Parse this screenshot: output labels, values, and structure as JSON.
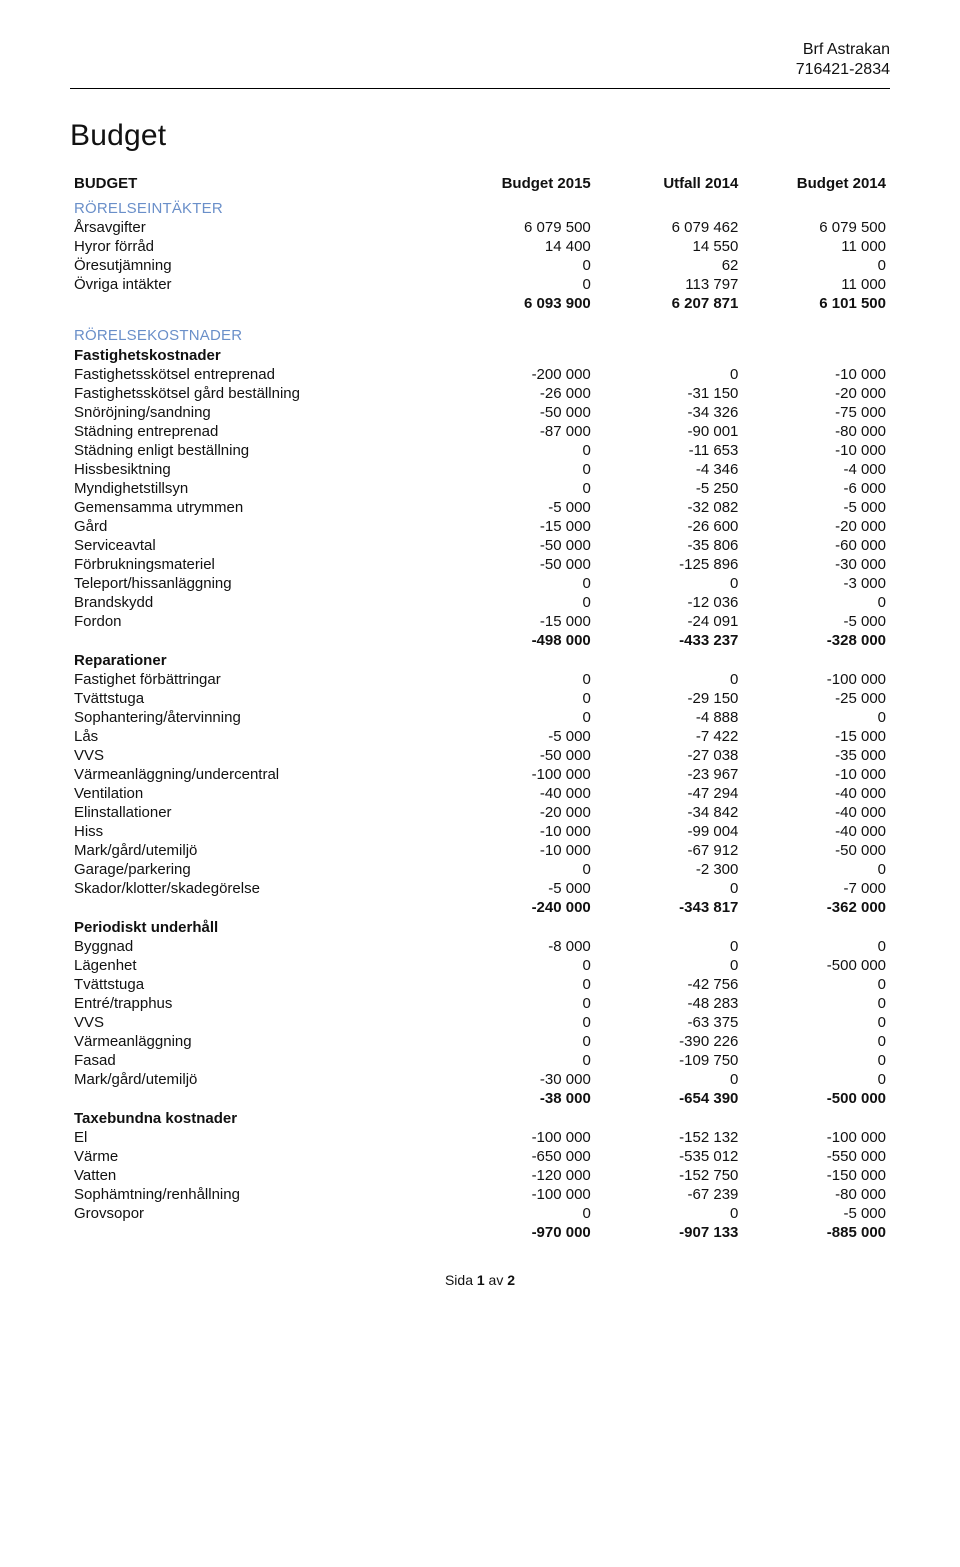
{
  "header": {
    "org_name": "Brf Astrakan",
    "org_number": "716421-2834"
  },
  "title": "Budget",
  "columns": {
    "label": "BUDGET",
    "c1": "Budget 2015",
    "c2": "Utfall 2014",
    "c3": "Budget 2014"
  },
  "sections": [
    {
      "title": "RÖRELSEINTÄKTER",
      "rows": [
        {
          "label": "Årsavgifter",
          "c1": "6 079 500",
          "c2": "6 079 462",
          "c3": "6 079 500"
        },
        {
          "label": "Hyror förråd",
          "c1": "14 400",
          "c2": "14 550",
          "c3": "11 000"
        },
        {
          "label": "Öresutjämning",
          "c1": "0",
          "c2": "62",
          "c3": "0"
        },
        {
          "label": "Övriga intäkter",
          "c1": "0",
          "c2": "113 797",
          "c3": "11 000"
        }
      ],
      "sum": {
        "label": "",
        "c1": "6 093 900",
        "c2": "6 207 871",
        "c3": "6 101 500"
      }
    },
    {
      "title": "RÖRELSEKOSTNADER",
      "subsections": [
        {
          "title": "Fastighetskostnader",
          "rows": [
            {
              "label": "Fastighetsskötsel entreprenad",
              "c1": "-200 000",
              "c2": "0",
              "c3": "-10 000"
            },
            {
              "label": "Fastighetsskötsel gård beställning",
              "c1": "-26 000",
              "c2": "-31 150",
              "c3": "-20 000"
            },
            {
              "label": "Snöröjning/sandning",
              "c1": "-50 000",
              "c2": "-34 326",
              "c3": "-75 000"
            },
            {
              "label": "Städning entreprenad",
              "c1": "-87 000",
              "c2": "-90 001",
              "c3": "-80 000"
            },
            {
              "label": "Städning enligt beställning",
              "c1": "0",
              "c2": "-11 653",
              "c3": "-10 000"
            },
            {
              "label": "Hissbesiktning",
              "c1": "0",
              "c2": "-4 346",
              "c3": "-4 000"
            },
            {
              "label": "Myndighetstillsyn",
              "c1": "0",
              "c2": "-5 250",
              "c3": "-6 000"
            },
            {
              "label": "Gemensamma utrymmen",
              "c1": "-5 000",
              "c2": "-32 082",
              "c3": "-5 000"
            },
            {
              "label": "Gård",
              "c1": "-15 000",
              "c2": "-26 600",
              "c3": "-20 000"
            },
            {
              "label": "Serviceavtal",
              "c1": "-50 000",
              "c2": "-35 806",
              "c3": "-60 000"
            },
            {
              "label": "Förbrukningsmateriel",
              "c1": "-50 000",
              "c2": "-125 896",
              "c3": "-30 000"
            },
            {
              "label": "Teleport/hissanläggning",
              "c1": "0",
              "c2": "0",
              "c3": "-3 000"
            },
            {
              "label": "Brandskydd",
              "c1": "0",
              "c2": "-12 036",
              "c3": "0"
            },
            {
              "label": "Fordon",
              "c1": "-15 000",
              "c2": "-24 091",
              "c3": "-5 000"
            }
          ],
          "sum": {
            "label": "",
            "c1": "-498 000",
            "c2": "-433 237",
            "c3": "-328 000"
          }
        },
        {
          "title": "Reparationer",
          "rows": [
            {
              "label": "Fastighet förbättringar",
              "c1": "0",
              "c2": "0",
              "c3": "-100 000"
            },
            {
              "label": "Tvättstuga",
              "c1": "0",
              "c2": "-29 150",
              "c3": "-25 000"
            },
            {
              "label": "Sophantering/återvinning",
              "c1": "0",
              "c2": "-4 888",
              "c3": "0"
            },
            {
              "label": "Lås",
              "c1": "-5 000",
              "c2": "-7 422",
              "c3": "-15 000"
            },
            {
              "label": "VVS",
              "c1": "-50 000",
              "c2": "-27 038",
              "c3": "-35 000"
            },
            {
              "label": "Värmeanläggning/undercentral",
              "c1": "-100 000",
              "c2": "-23 967",
              "c3": "-10 000"
            },
            {
              "label": "Ventilation",
              "c1": "-40 000",
              "c2": "-47 294",
              "c3": "-40 000"
            },
            {
              "label": "Elinstallationer",
              "c1": "-20 000",
              "c2": "-34 842",
              "c3": "-40 000"
            },
            {
              "label": "Hiss",
              "c1": "-10 000",
              "c2": "-99 004",
              "c3": "-40 000"
            },
            {
              "label": "Mark/gård/utemiljö",
              "c1": "-10 000",
              "c2": "-67 912",
              "c3": "-50 000"
            },
            {
              "label": "Garage/parkering",
              "c1": "0",
              "c2": "-2 300",
              "c3": "0"
            },
            {
              "label": "Skador/klotter/skadegörelse",
              "c1": "-5 000",
              "c2": "0",
              "c3": "-7 000"
            }
          ],
          "sum": {
            "label": "",
            "c1": "-240 000",
            "c2": "-343 817",
            "c3": "-362 000"
          }
        },
        {
          "title": "Periodiskt underhåll",
          "rows": [
            {
              "label": "Byggnad",
              "c1": "-8 000",
              "c2": "0",
              "c3": "0"
            },
            {
              "label": "Lägenhet",
              "c1": "0",
              "c2": "0",
              "c3": "-500 000"
            },
            {
              "label": "Tvättstuga",
              "c1": "0",
              "c2": "-42 756",
              "c3": "0"
            },
            {
              "label": "Entré/trapphus",
              "c1": "0",
              "c2": "-48 283",
              "c3": "0"
            },
            {
              "label": "VVS",
              "c1": "0",
              "c2": "-63 375",
              "c3": "0"
            },
            {
              "label": "Värmeanläggning",
              "c1": "0",
              "c2": "-390 226",
              "c3": "0"
            },
            {
              "label": "Fasad",
              "c1": "0",
              "c2": "-109 750",
              "c3": "0"
            },
            {
              "label": "Mark/gård/utemiljö",
              "c1": "-30 000",
              "c2": "0",
              "c3": "0"
            }
          ],
          "sum": {
            "label": "",
            "c1": "-38 000",
            "c2": "-654 390",
            "c3": "-500 000"
          }
        },
        {
          "title": "Taxebundna kostnader",
          "rows": [
            {
              "label": "El",
              "c1": "-100 000",
              "c2": "-152 132",
              "c3": "-100 000"
            },
            {
              "label": "Värme",
              "c1": "-650 000",
              "c2": "-535 012",
              "c3": "-550 000"
            },
            {
              "label": "Vatten",
              "c1": "-120 000",
              "c2": "-152 750",
              "c3": "-150 000"
            },
            {
              "label": "Sophämtning/renhållning",
              "c1": "-100 000",
              "c2": "-67 239",
              "c3": "-80 000"
            },
            {
              "label": "Grovsopor",
              "c1": "0",
              "c2": "0",
              "c3": "-5 000"
            }
          ],
          "sum": {
            "label": "",
            "c1": "-970 000",
            "c2": "-907 133",
            "c3": "-885 000"
          }
        }
      ]
    }
  ],
  "footer": {
    "prefix": "Sida ",
    "current": "1",
    "middle": " av ",
    "total": "2"
  }
}
